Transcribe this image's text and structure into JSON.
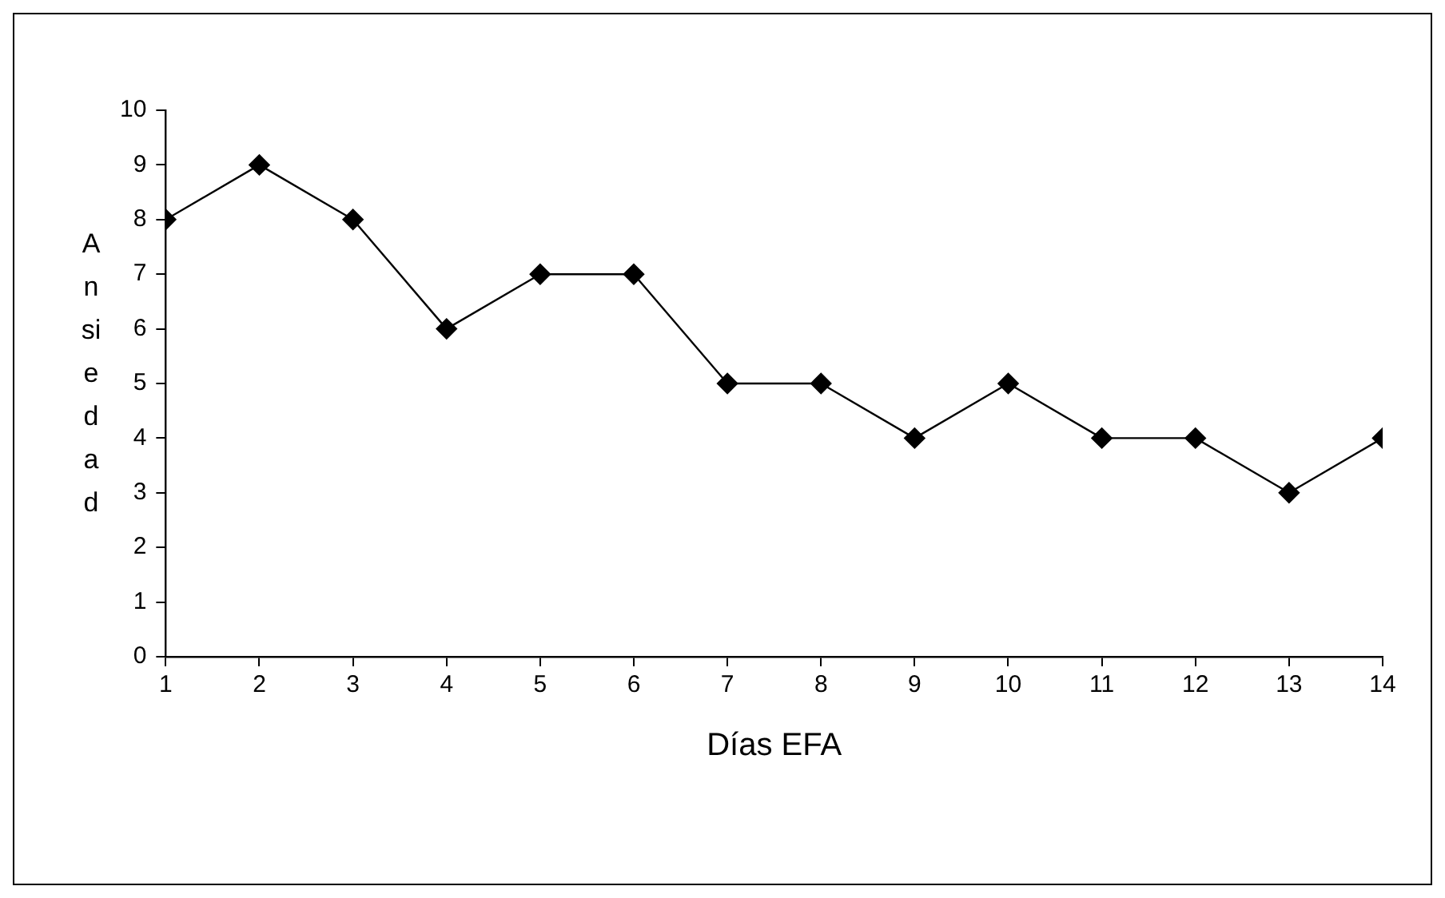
{
  "chart_data": {
    "type": "line",
    "xlabel": "Días EFA",
    "ylabel": "Ansiedad",
    "x": [
      1,
      2,
      3,
      4,
      5,
      6,
      7,
      8,
      9,
      10,
      11,
      12,
      13,
      14
    ],
    "series": [
      {
        "color": "#000000",
        "values": [
          8,
          9,
          8,
          6,
          7,
          7,
          5,
          5,
          4,
          5,
          4,
          4,
          3,
          4
        ]
      }
    ],
    "xlim": [
      1,
      14
    ],
    "xticks": [
      1,
      2,
      3,
      4,
      5,
      6,
      7,
      8,
      9,
      10,
      11,
      12,
      13,
      14
    ],
    "ylim": [
      0,
      10
    ],
    "yticks": [
      0,
      1,
      2,
      3,
      4,
      5,
      6,
      7,
      8,
      9,
      10
    ],
    "grid": false,
    "legend": false,
    "marker": "diamond",
    "line_style": "solid"
  }
}
